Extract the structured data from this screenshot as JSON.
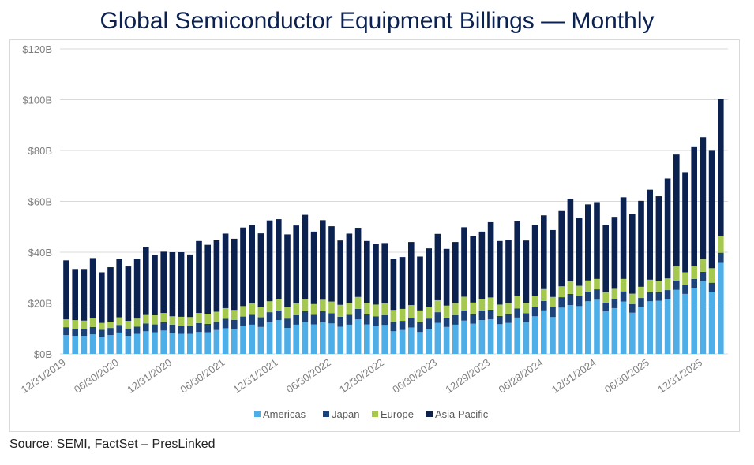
{
  "title": "Global Semiconductor Equipment Billings — Monthly",
  "source": "Source: SEMI, FactSet – PresLinked",
  "chart_data": {
    "type": "bar",
    "stacked": true,
    "title": "Global Semiconductor Equipment Billings — Monthly",
    "xlabel": "",
    "ylabel": "",
    "ylim": [
      0,
      120
    ],
    "y_ticks": [
      0,
      20,
      40,
      60,
      80,
      100,
      120
    ],
    "y_tick_labels": [
      "$0B",
      "$20B",
      "$40B",
      "$60B",
      "$80B",
      "$100B",
      "$120B"
    ],
    "x_tick_every": 6,
    "x_tick_labels": [
      "12/31/2019",
      "06/30/2020",
      "12/31/2020",
      "06/30/2021",
      "12/31/2021",
      "06/30/2022",
      "12/30/2022",
      "06/30/2023",
      "12/29/2023",
      "06/28/2024",
      "12/31/2024",
      "06/30/2025",
      "12/31/2025"
    ],
    "grid": true,
    "legend_position": "bottom",
    "series": [
      {
        "name": "Americas",
        "color": "#4daee8",
        "values": [
          7.4,
          7.1,
          7.1,
          7.7,
          6.8,
          7.4,
          8.4,
          7.1,
          7.9,
          8.9,
          8.5,
          9.2,
          8.3,
          7.9,
          7.9,
          8.6,
          8.5,
          9.4,
          10.1,
          9.8,
          11.0,
          11.5,
          10.6,
          12.5,
          13.3,
          10.2,
          11.5,
          12.6,
          11.6,
          12.5,
          12.0,
          10.7,
          11.5,
          13.6,
          11.6,
          10.9,
          11.4,
          8.9,
          9.4,
          10.4,
          8.6,
          9.9,
          12.2,
          10.6,
          11.5,
          13.1,
          11.9,
          13.3,
          13.6,
          11.7,
          12.2,
          14.3,
          12.6,
          14.8,
          17.1,
          14.5,
          18.2,
          19.2,
          18.8,
          20.7,
          21.3,
          16.8,
          18.0,
          20.6,
          16.2,
          18.6,
          20.7,
          20.9,
          21.5,
          25.2,
          23.6,
          26.0,
          28.7,
          24.5,
          35.8
        ]
      },
      {
        "name": "Japan",
        "color": "#1b4379",
        "values": [
          3.1,
          2.8,
          2.6,
          2.9,
          2.7,
          2.8,
          3.0,
          2.9,
          2.8,
          3.1,
          3.1,
          3.3,
          3.2,
          3.0,
          3.0,
          3.5,
          3.3,
          3.2,
          3.7,
          3.6,
          3.7,
          3.9,
          3.8,
          3.9,
          3.8,
          3.7,
          3.7,
          4.2,
          3.8,
          4.3,
          4.0,
          3.9,
          3.9,
          4.1,
          3.9,
          3.9,
          3.8,
          3.7,
          3.6,
          3.8,
          3.9,
          4.0,
          4.2,
          3.7,
          3.7,
          4.0,
          3.7,
          3.8,
          3.8,
          3.2,
          3.4,
          3.6,
          3.4,
          3.8,
          3.7,
          3.9,
          4.1,
          4.4,
          3.9,
          3.8,
          4.1,
          3.4,
          3.5,
          4.0,
          3.4,
          3.4,
          3.6,
          3.4,
          3.6,
          3.7,
          3.7,
          3.5,
          3.6,
          3.5,
          4.0
        ]
      },
      {
        "name": "Europe",
        "color": "#a5c94e",
        "values": [
          3.1,
          3.4,
          3.4,
          3.5,
          2.7,
          2.5,
          3.0,
          3.0,
          3.2,
          3.3,
          3.6,
          3.6,
          3.3,
          3.7,
          3.6,
          4.0,
          4.0,
          4.0,
          4.2,
          3.9,
          4.1,
          4.5,
          4.2,
          4.3,
          4.6,
          4.5,
          4.7,
          4.9,
          4.2,
          4.5,
          4.6,
          4.7,
          4.7,
          4.7,
          4.6,
          4.6,
          4.7,
          4.7,
          4.7,
          5.0,
          4.6,
          4.7,
          4.7,
          4.7,
          4.8,
          5.4,
          4.6,
          4.4,
          4.8,
          4.5,
          4.4,
          4.8,
          4.1,
          4.1,
          4.7,
          4.0,
          4.3,
          5.0,
          4.1,
          4.4,
          4.1,
          4.1,
          4.1,
          4.9,
          4.1,
          4.4,
          4.9,
          4.5,
          4.6,
          5.5,
          4.8,
          4.9,
          5.1,
          5.7,
          6.5
        ]
      },
      {
        "name": "Asia Pacific",
        "color": "#0b2150",
        "values": [
          23.2,
          20.1,
          20.3,
          23.6,
          19.9,
          21.4,
          23.0,
          21.4,
          23.6,
          26.6,
          23.7,
          24.1,
          25.2,
          25.4,
          24.6,
          28.3,
          27.1,
          28.1,
          29.3,
          28.0,
          30.9,
          30.8,
          28.8,
          31.8,
          31.3,
          28.6,
          30.6,
          33.0,
          28.5,
          31.3,
          29.6,
          25.3,
          27.2,
          27.2,
          24.3,
          23.7,
          23.7,
          20.2,
          20.4,
          24.8,
          21.2,
          22.9,
          26.1,
          22.3,
          24.0,
          27.3,
          26.3,
          26.6,
          29.6,
          25.0,
          24.9,
          29.5,
          24.5,
          28.0,
          29.0,
          26.3,
          29.6,
          32.4,
          26.8,
          29.9,
          30.2,
          26.3,
          28.3,
          32.1,
          31.2,
          33.8,
          35.4,
          33.2,
          39.3,
          44.0,
          39.4,
          47.2,
          47.8,
          46.5,
          54.1
        ]
      }
    ]
  }
}
